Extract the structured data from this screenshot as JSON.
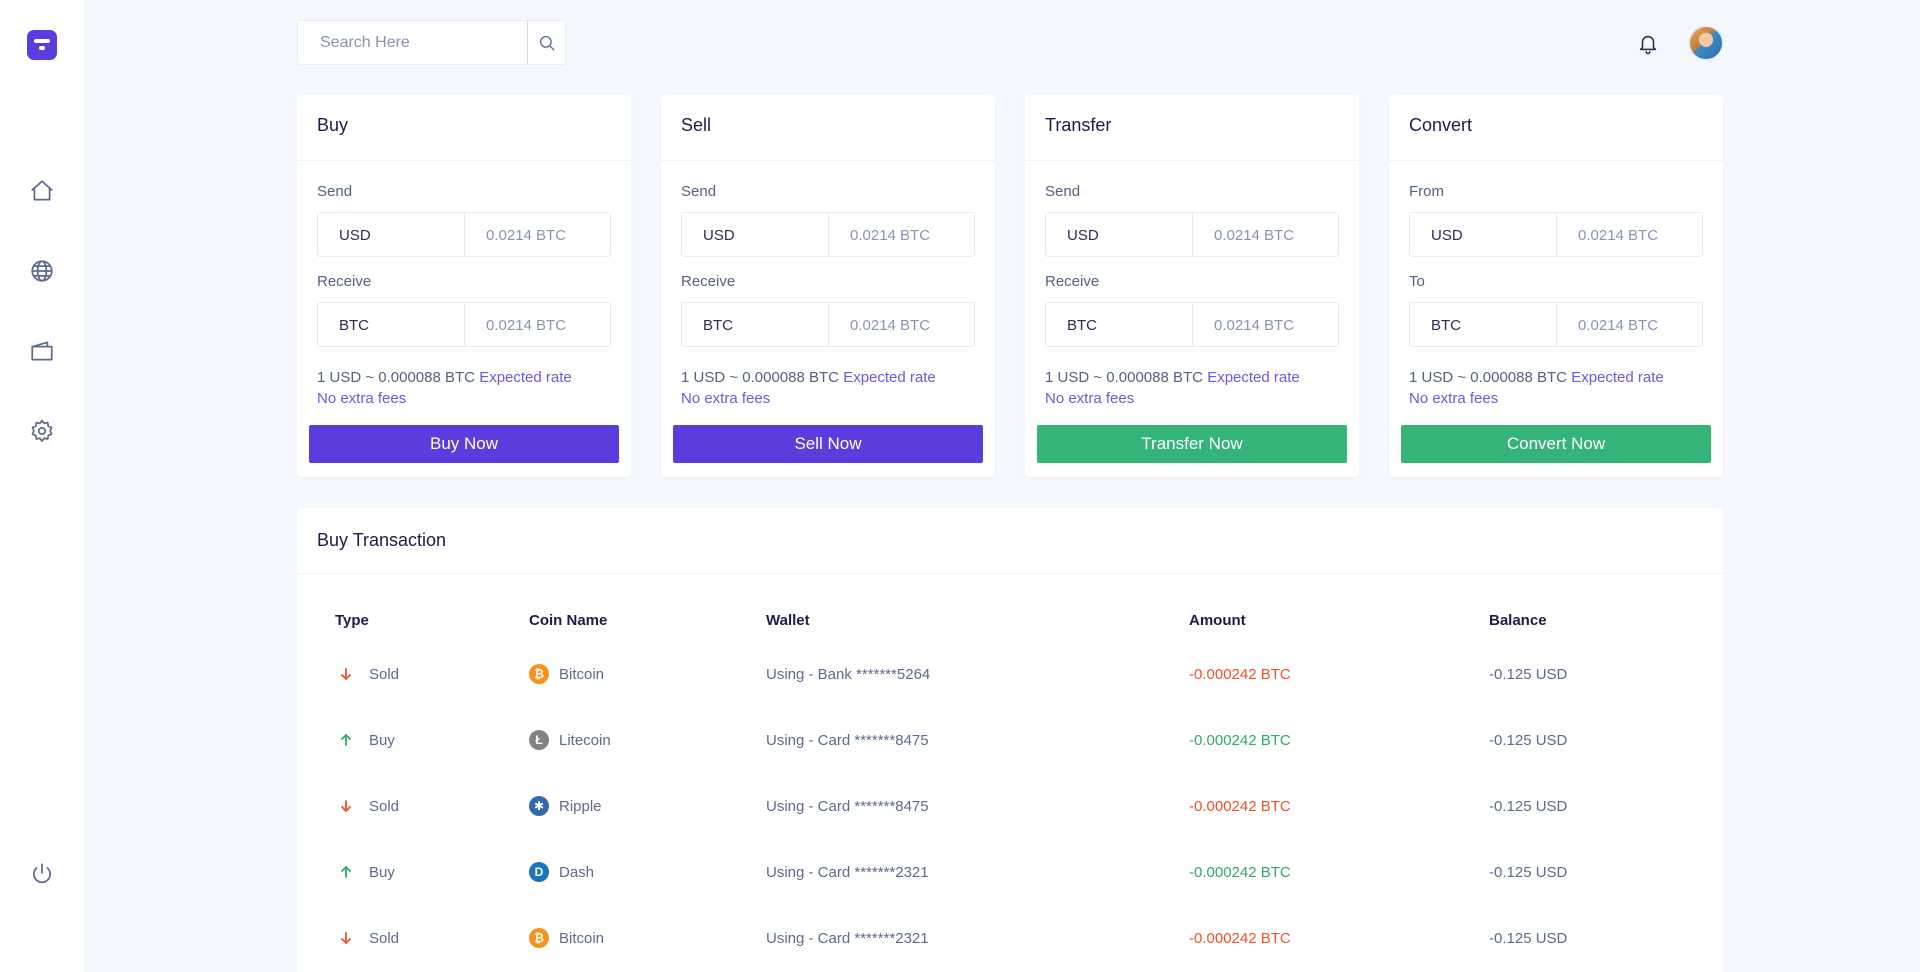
{
  "search": {
    "placeholder": "Search Here"
  },
  "cards": [
    {
      "title": "Buy",
      "label1": "Send",
      "cur1": "USD",
      "amt1": "0.0214 BTC",
      "label2": "Receive",
      "cur2": "BTC",
      "amt2": "0.0214 BTC",
      "rate": "1 USD ~ 0.000088 BTC",
      "expected": "Expected rate",
      "fees": "No extra fees",
      "button": "Buy Now",
      "button_color": "#5b3cdc"
    },
    {
      "title": "Sell",
      "label1": "Send",
      "cur1": "USD",
      "amt1": "0.0214 BTC",
      "label2": "Receive",
      "cur2": "BTC",
      "amt2": "0.0214 BTC",
      "rate": "1 USD ~ 0.000088 BTC",
      "expected": "Expected rate",
      "fees": "No extra fees",
      "button": "Sell Now",
      "button_color": "#5b3cdc"
    },
    {
      "title": "Transfer",
      "label1": "Send",
      "cur1": "USD",
      "amt1": "0.0214 BTC",
      "label2": "Receive",
      "cur2": "BTC",
      "amt2": "0.0214 BTC",
      "rate": "1 USD ~ 0.000088 BTC",
      "expected": "Expected rate",
      "fees": "No extra fees",
      "button": "Transfer Now",
      "button_color": "#35b47a"
    },
    {
      "title": "Convert",
      "label1": "From",
      "cur1": "USD",
      "amt1": "0.0214 BTC",
      "label2": "To",
      "cur2": "BTC",
      "amt2": "0.0214 BTC",
      "rate": "1 USD ~ 0.000088 BTC",
      "expected": "Expected rate",
      "fees": "No extra fees",
      "button": "Convert Now",
      "button_color": "#35b47a"
    }
  ],
  "transactions": {
    "title": "Buy Transaction",
    "headers": {
      "type": "Type",
      "coin": "Coin Name",
      "wallet": "Wallet",
      "amount": "Amount",
      "balance": "Balance"
    },
    "rows": [
      {
        "type": "Sold",
        "direction": "down",
        "coin": "Bitcoin",
        "coin_icon": "bitcoin-icon",
        "coin_color": "#f7931a",
        "coin_glyph": "₿",
        "wallet": "Using - Bank *******5264",
        "amount": "-0.000242 BTC",
        "amount_color": "red",
        "balance": "-0.125 USD"
      },
      {
        "type": "Buy",
        "direction": "up",
        "coin": "Litecoin",
        "coin_icon": "litecoin-icon",
        "coin_color": "#838383",
        "coin_glyph": "Ł",
        "wallet": "Using - Card *******8475",
        "amount": "-0.000242 BTC",
        "amount_color": "green",
        "balance": "-0.125 USD"
      },
      {
        "type": "Sold",
        "direction": "down",
        "coin": "Ripple",
        "coin_icon": "ripple-icon",
        "coin_color": "#346aa9",
        "coin_glyph": "✱",
        "wallet": "Using - Card *******8475",
        "amount": "-0.000242 BTC",
        "amount_color": "red",
        "balance": "-0.125 USD"
      },
      {
        "type": "Buy",
        "direction": "up",
        "coin": "Dash",
        "coin_icon": "dash-icon",
        "coin_color": "#1c75bc",
        "coin_glyph": "D",
        "wallet": "Using - Card *******2321",
        "amount": "-0.000242 BTC",
        "amount_color": "green",
        "balance": "-0.125 USD"
      },
      {
        "type": "Sold",
        "direction": "down",
        "coin": "Bitcoin",
        "coin_icon": "bitcoin-icon",
        "coin_color": "#f7931a",
        "coin_glyph": "₿",
        "wallet": "Using - Card *******2321",
        "amount": "-0.000242 BTC",
        "amount_color": "red",
        "balance": "-0.125 USD"
      }
    ]
  }
}
